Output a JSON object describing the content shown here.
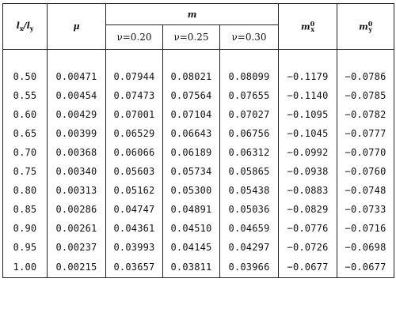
{
  "header": {
    "ratio": "l",
    "ratio_sub1": "x",
    "ratio_sep": "/l",
    "ratio_sub2": "y",
    "mu": "μ",
    "m": "m",
    "nu_labels": [
      "ν=0.20",
      "ν=0.25",
      "ν=0.30"
    ],
    "mx0_base": "m",
    "mx0_sub": "x",
    "mx0_sup": "0",
    "my0_base": "m",
    "my0_sub": "y",
    "my0_sup": "0"
  },
  "rows": [
    [
      "0.50",
      "0.00471",
      "0.07944",
      "0.08021",
      "0.08099",
      "−0.1179",
      "−0.0786"
    ],
    [
      "0.55",
      "0.00454",
      "0.07473",
      "0.07564",
      "0.07655",
      "−0.1140",
      "−0.0785"
    ],
    [
      "0.60",
      "0.00429",
      "0.07001",
      "0.07104",
      "0.07027",
      "−0.1095",
      "−0.0782"
    ],
    [
      "0.65",
      "0.00399",
      "0.06529",
      "0.06643",
      "0.06756",
      "−0.1045",
      "−0.0777"
    ],
    [
      "0.70",
      "0.00368",
      "0.06066",
      "0.06189",
      "0.06312",
      "−0.0992",
      "−0.0770"
    ],
    [
      "0.75",
      "0.00340",
      "0.05603",
      "0.05734",
      "0.05865",
      "−0.0938",
      "−0.0760"
    ],
    [
      "0.80",
      "0.00313",
      "0.05162",
      "0.05300",
      "0.05438",
      "−0.0883",
      "−0.0748"
    ],
    [
      "0.85",
      "0.00286",
      "0.04747",
      "0.04891",
      "0.05036",
      "−0.0829",
      "−0.0733"
    ],
    [
      "0.90",
      "0.00261",
      "0.04361",
      "0.04510",
      "0.04659",
      "−0.0776",
      "−0.0716"
    ],
    [
      "0.95",
      "0.00237",
      "0.03993",
      "0.04145",
      "0.04297",
      "−0.0726",
      "−0.0698"
    ],
    [
      "1.00",
      "0.00215",
      "0.03657",
      "0.03811",
      "0.03966",
      "−0.0677",
      "−0.0677"
    ]
  ]
}
